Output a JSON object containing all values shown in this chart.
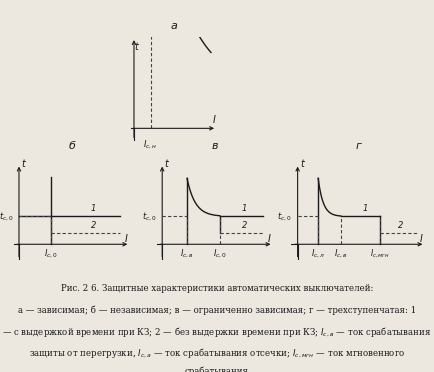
{
  "bg_color": "#ede8df",
  "line_color": "#1a1a1a",
  "dashed_color": "#444444",
  "fig_title_a": "a",
  "fig_title_b": "б",
  "fig_title_v": "в",
  "fig_title_g": "г"
}
